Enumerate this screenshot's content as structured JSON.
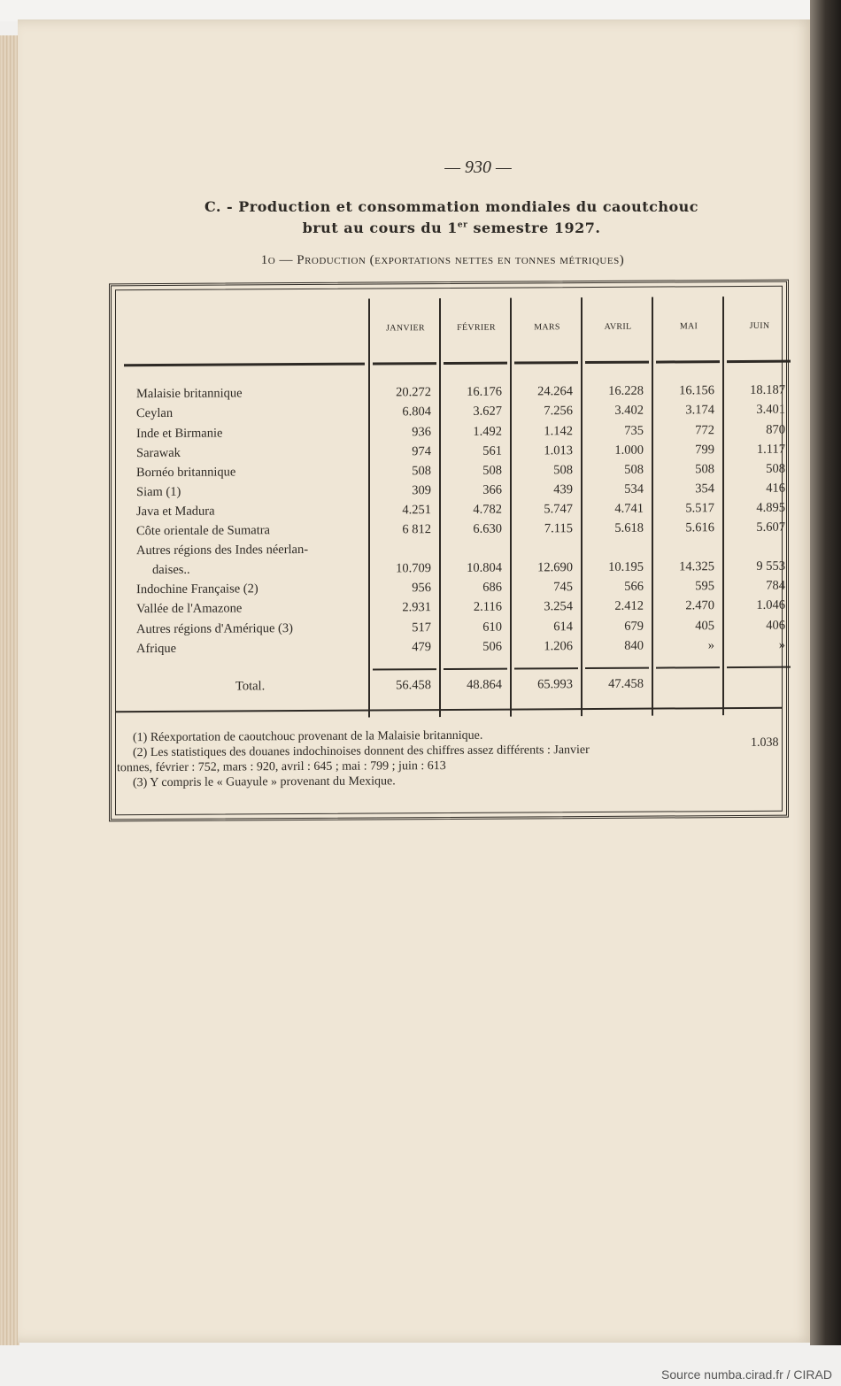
{
  "page_number": "— 930 —",
  "title_line1": "C. - Production et consommation mondiales du caoutchouc",
  "title_line2_pre": "brut au cours du 1",
  "title_line2_sup": "er",
  "title_line2_post": " semestre 1927.",
  "subtitle": "1o — Production (exportations nettes en tonnes métriques)",
  "table": {
    "columns": [
      "JANVIER",
      "FÉVRIER",
      "MARS",
      "AVRIL",
      "MAI",
      "JUIN"
    ],
    "rows": [
      {
        "label": "Malaisie britannique",
        "values": [
          "20.272",
          "16.176",
          "24.264",
          "16.228",
          "16.156",
          "18.187"
        ]
      },
      {
        "label": "Ceylan",
        "values": [
          "6.804",
          "3.627",
          "7.256",
          "3.402",
          "3.174",
          "3.401"
        ]
      },
      {
        "label": "Inde et Birmanie",
        "values": [
          "936",
          "1.492",
          "1.142",
          "735",
          "772",
          "870"
        ]
      },
      {
        "label": "Sarawak",
        "values": [
          "974",
          "561",
          "1.013",
          "1.000",
          "799",
          "1.117"
        ]
      },
      {
        "label": "Bornéo britannique",
        "values": [
          "508",
          "508",
          "508",
          "508",
          "508",
          "508"
        ]
      },
      {
        "label": "Siam (1)",
        "values": [
          "309",
          "366",
          "439",
          "534",
          "354",
          "416"
        ]
      },
      {
        "label": "Java et Madura",
        "values": [
          "4.251",
          "4.782",
          "5.747",
          "4.741",
          "5.517",
          "4.895"
        ]
      },
      {
        "label": "Côte orientale de Sumatra",
        "values": [
          "6 812",
          "6.630",
          "7.115",
          "5.618",
          "5.616",
          "5.607"
        ]
      },
      {
        "label": "Autres régions des Indes néerlan-",
        "label_cont": "daises..",
        "values": [
          "10.709",
          "10.804",
          "12.690",
          "10.195",
          "14.325",
          "9 553"
        ]
      },
      {
        "label": "Indochine Française (2)",
        "values": [
          "956",
          "686",
          "745",
          "566",
          "595",
          "784"
        ]
      },
      {
        "label": "Vallée de l'Amazone",
        "values": [
          "2.931",
          "2.116",
          "3.254",
          "2.412",
          "2.470",
          "1.046"
        ]
      },
      {
        "label": "Autres régions d'Amérique (3)",
        "values": [
          "517",
          "610",
          "614",
          "679",
          "405",
          "406"
        ]
      },
      {
        "label": "Afrique",
        "values": [
          "479",
          "506",
          "1.206",
          "840",
          "»",
          "»"
        ]
      }
    ],
    "total": {
      "label": "Total.",
      "values": [
        "56.458",
        "48.864",
        "65.993",
        "47.458",
        "",
        ""
      ]
    }
  },
  "notes": [
    "(1) Réexportation de caoutchouc provenant de la Malaisie britannique.",
    "(2) Les statistiques des douanes indochinoises donnent des chiffres assez différents : Janvier",
    "1.038",
    "tonnes, février : 752, mars : 920, avril : 645 ; mai : 799 ; juin : 613",
    "(3) Y compris le « Guayule » provenant du Mexique."
  ],
  "source": "Source numba.cirad.fr / CIRAD"
}
